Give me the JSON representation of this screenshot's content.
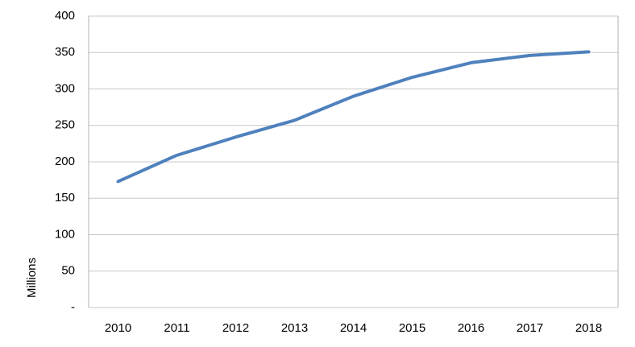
{
  "chart_data": {
    "type": "line",
    "y_label": "Millions",
    "categories": [
      "2010",
      "2011",
      "2012",
      "2013",
      "2014",
      "2015",
      "2016",
      "2017",
      "2018"
    ],
    "series": [
      {
        "name": "Millions",
        "color": "#4f81bd",
        "values": [
          173,
          209,
          234,
          257,
          290,
          316,
          336,
          346,
          351
        ]
      }
    ],
    "ylim": [
      0,
      400
    ],
    "yticks": [
      {
        "value": 0,
        "label": "-"
      },
      50,
      100,
      150,
      200,
      250,
      300,
      350,
      400
    ],
    "grid": true
  }
}
